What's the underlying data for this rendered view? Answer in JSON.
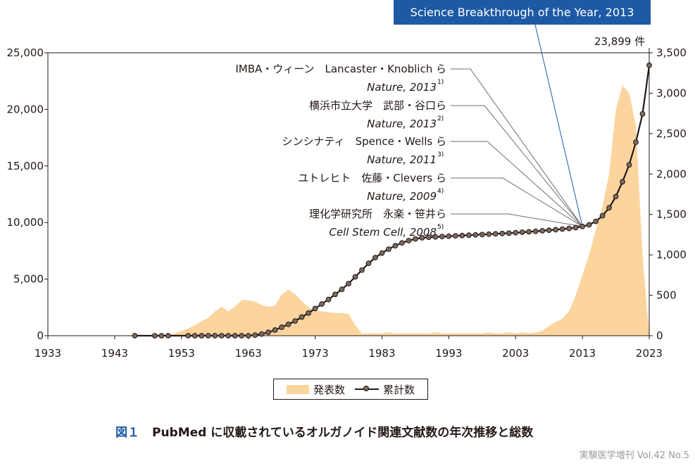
{
  "banner": "Science Breakthrough of the Year, 2013",
  "total_label": "23,899 件",
  "legend": {
    "publications": "発表数",
    "cumulative": "累計数"
  },
  "caption": {
    "fig": "図１",
    "text": "PubMed に収載されているオルガノイド関連文献数の年次推移と総数"
  },
  "journal": "実験医学増刊 Vol.42 No.5",
  "annotations": [
    {
      "line1": "IMBA・ウィーン　Lancaster・Knoblich ら",
      "line2": "Nature, 2013",
      "ref": "1)"
    },
    {
      "line1": "横浜市立大学　武部・谷口ら",
      "line2": "Nature, 2013",
      "ref": "2)"
    },
    {
      "line1": "シンシナティ　Spence・Wells ら",
      "line2": "Nature, 2011",
      "ref": "3)"
    },
    {
      "line1": "ユトレヒト　佐藤・Clevers ら",
      "line2": "Nature, 2009",
      "ref": "4)"
    },
    {
      "line1": "理化学研究所　永楽・笹井ら",
      "line2": "Cell Stem Cell, 2008",
      "ref": "5)"
    }
  ],
  "colors": {
    "area": "#fbd49e",
    "line": "#231815",
    "marker": "#7a6a60",
    "banner": "#1d5aa6"
  },
  "chart_data": {
    "type": "area+line",
    "x_ticks": [
      "1933",
      "1943",
      "1953",
      "1963",
      "1973",
      "1983",
      "1993",
      "2003",
      "2013",
      "2023"
    ],
    "xlim": [
      1933,
      2023
    ],
    "left_axis": {
      "ticks": [
        "0",
        "5,000",
        "10,000",
        "15,000",
        "20,000",
        "25,000"
      ],
      "lim": [
        0,
        25000
      ]
    },
    "right_axis": {
      "ticks": [
        "0",
        "500",
        "1,000",
        "1,500",
        "2,000",
        "2,500",
        "3,000",
        "3,500"
      ],
      "lim": [
        0,
        3500
      ]
    },
    "series": [
      {
        "name": "累計数",
        "axis": "left",
        "style": "line-markers",
        "x": [
          1946,
          1949,
          1950,
          1951,
          1954,
          1955,
          1956,
          1957,
          1958,
          1959,
          1960,
          1961,
          1962,
          1963,
          1964,
          1965,
          1966,
          1967,
          1968,
          1969,
          1970,
          1971,
          1972,
          1973,
          1974,
          1975,
          1976,
          1977,
          1978,
          1979,
          1980,
          1981,
          1982,
          1983,
          1984,
          1985,
          1986,
          1987,
          1988,
          1989,
          1990,
          1991,
          1992,
          1993,
          1994,
          1995,
          1996,
          1997,
          1998,
          1999,
          2000,
          2001,
          2002,
          2003,
          2004,
          2005,
          2006,
          2007,
          2008,
          2009,
          2010,
          2011,
          2012,
          2013,
          2014,
          2015,
          2016,
          2017,
          2018,
          2019,
          2020,
          2021,
          2022,
          2023
        ],
        "values": [
          0,
          0,
          0,
          0,
          0,
          0,
          0,
          0,
          0,
          0,
          0,
          0,
          0,
          0,
          50,
          150,
          300,
          500,
          750,
          1000,
          1300,
          1650,
          2000,
          2400,
          2800,
          3200,
          3650,
          4100,
          4600,
          5200,
          5800,
          6400,
          6900,
          7300,
          7650,
          7950,
          8200,
          8400,
          8550,
          8650,
          8700,
          8730,
          8760,
          8790,
          8820,
          8850,
          8880,
          8910,
          8940,
          8970,
          9000,
          9030,
          9060,
          9100,
          9140,
          9180,
          9220,
          9270,
          9320,
          9370,
          9420,
          9480,
          9550,
          9650,
          9800,
          10100,
          10600,
          11300,
          12300,
          13600,
          15100,
          17100,
          19600,
          23899
        ]
      },
      {
        "name": "発表数",
        "axis": "right",
        "style": "area",
        "x": [
          1951,
          1952,
          1953,
          1954,
          1955,
          1956,
          1957,
          1958,
          1959,
          1960,
          1961,
          1962,
          1963,
          1964,
          1965,
          1966,
          1967,
          1968,
          1969,
          1970,
          1971,
          1972,
          1973,
          1974,
          1975,
          1976,
          1977,
          1978,
          1979,
          1980,
          1981,
          1982,
          1983,
          1984,
          1985,
          1986,
          1987,
          1988,
          1989,
          1990,
          1991,
          1992,
          1993,
          1994,
          1995,
          1996,
          1997,
          1998,
          1999,
          2000,
          2001,
          2002,
          2003,
          2004,
          2005,
          2006,
          2007,
          2008,
          2009,
          2010,
          2011,
          2012,
          2013,
          2014,
          2015,
          2016,
          2017,
          2018,
          2019,
          2020,
          2021,
          2022,
          2023
        ],
        "values": [
          0,
          30,
          60,
          90,
          130,
          180,
          220,
          300,
          360,
          300,
          360,
          440,
          440,
          420,
          380,
          360,
          370,
          510,
          570,
          510,
          430,
          350,
          320,
          300,
          290,
          280,
          280,
          270,
          130,
          30,
          30,
          30,
          30,
          40,
          30,
          30,
          30,
          30,
          30,
          30,
          40,
          30,
          30,
          30,
          30,
          30,
          30,
          30,
          40,
          30,
          30,
          40,
          30,
          40,
          30,
          40,
          60,
          120,
          170,
          210,
          300,
          500,
          750,
          1000,
          1300,
          1600,
          2000,
          2800,
          3100,
          3000,
          2600,
          1000,
          0
        ]
      }
    ]
  }
}
